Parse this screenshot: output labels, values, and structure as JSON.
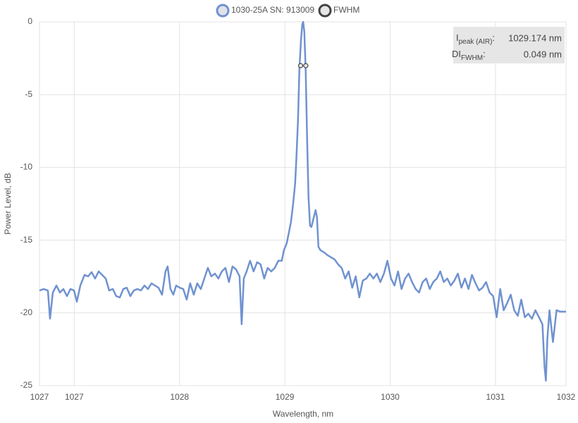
{
  "chart_data": {
    "type": "line",
    "xlabel": "Wavelength, nm",
    "ylabel": "Power Level, dB",
    "xlim": [
      1026.67,
      1031.67
    ],
    "xticks": [
      {
        "value": 1026.67,
        "label": "1027"
      },
      1027,
      1028,
      1029,
      1030,
      1031,
      {
        "value": 1031.67,
        "label": "1032"
      }
    ],
    "ylim": [
      -25,
      0
    ],
    "yticks": [
      0,
      -5,
      -10,
      -15,
      -20,
      -25
    ],
    "grid": true,
    "series": [
      {
        "name": "1030-25A SN: 913009",
        "color": "#7092d0",
        "marker_fill": "#dfe3ea",
        "x": [
          1026.67,
          1026.71,
          1026.75,
          1026.77,
          1026.797,
          1026.831,
          1026.864,
          1026.897,
          1026.931,
          1026.964,
          1026.998,
          1027.025,
          1027.058,
          1027.098,
          1027.132,
          1027.165,
          1027.198,
          1027.232,
          1027.265,
          1027.299,
          1027.332,
          1027.366,
          1027.399,
          1027.433,
          1027.466,
          1027.499,
          1027.533,
          1027.566,
          1027.6,
          1027.633,
          1027.667,
          1027.7,
          1027.734,
          1027.767,
          1027.8,
          1027.834,
          1027.867,
          1027.887,
          1027.914,
          1027.941,
          1027.968,
          1028.001,
          1028.035,
          1028.068,
          1028.101,
          1028.135,
          1028.168,
          1028.202,
          1028.235,
          1028.269,
          1028.302,
          1028.336,
          1028.369,
          1028.402,
          1028.436,
          1028.469,
          1028.503,
          1028.536,
          1028.57,
          1028.59,
          1028.61,
          1028.637,
          1028.67,
          1028.703,
          1028.737,
          1028.77,
          1028.804,
          1028.837,
          1028.871,
          1028.904,
          1028.938,
          1028.971,
          1028.991,
          1029.018,
          1029.038,
          1029.058,
          1029.078,
          1029.098,
          1029.111,
          1029.125,
          1029.138,
          1029.152,
          1029.165,
          1029.174,
          1029.185,
          1029.198,
          1029.212,
          1029.225,
          1029.239,
          1029.252,
          1029.272,
          1029.292,
          1029.305,
          1029.319,
          1029.339,
          1029.372,
          1029.406,
          1029.439,
          1029.473,
          1029.506,
          1029.54,
          1029.573,
          1029.606,
          1029.64,
          1029.673,
          1029.707,
          1029.74,
          1029.774,
          1029.807,
          1029.841,
          1029.874,
          1029.907,
          1029.941,
          1029.974,
          1030.008,
          1030.041,
          1030.075,
          1030.108,
          1030.142,
          1030.175,
          1030.208,
          1030.242,
          1030.275,
          1030.309,
          1030.342,
          1030.376,
          1030.409,
          1030.443,
          1030.476,
          1030.509,
          1030.543,
          1030.576,
          1030.61,
          1030.643,
          1030.677,
          1030.71,
          1030.744,
          1030.777,
          1030.811,
          1030.844,
          1030.877,
          1030.911,
          1030.944,
          1030.978,
          1031.011,
          1031.045,
          1031.078,
          1031.111,
          1031.145,
          1031.178,
          1031.212,
          1031.245,
          1031.279,
          1031.312,
          1031.346,
          1031.379,
          1031.413,
          1031.446,
          1031.466,
          1031.479,
          1031.493,
          1031.513,
          1031.546,
          1031.58,
          1031.613,
          1031.67
        ],
        "values": [
          -18.46,
          -18.36,
          -18.46,
          -20.4,
          -18.6,
          -18.12,
          -18.6,
          -18.36,
          -18.85,
          -18.36,
          -18.46,
          -19.23,
          -18.12,
          -17.39,
          -17.49,
          -17.2,
          -17.64,
          -17.15,
          -17.39,
          -17.64,
          -18.46,
          -18.36,
          -18.85,
          -18.94,
          -18.36,
          -18.27,
          -18.85,
          -18.46,
          -18.36,
          -18.46,
          -18.12,
          -18.36,
          -17.97,
          -18.12,
          -18.27,
          -18.75,
          -17.15,
          -16.81,
          -18.36,
          -18.75,
          -18.12,
          -18.27,
          -18.36,
          -19.09,
          -17.97,
          -18.75,
          -17.97,
          -18.36,
          -17.64,
          -16.91,
          -17.49,
          -17.3,
          -17.64,
          -17.15,
          -16.91,
          -17.88,
          -16.81,
          -17.01,
          -17.49,
          -20.78,
          -17.64,
          -17.15,
          -16.42,
          -17.15,
          -16.52,
          -16.67,
          -17.64,
          -16.91,
          -17.15,
          -16.91,
          -16.42,
          -16.42,
          -15.7,
          -15.21,
          -14.49,
          -13.76,
          -12.55,
          -11.09,
          -9.16,
          -6.73,
          -3.34,
          -1.41,
          -0.19,
          0,
          -0.68,
          -3.34,
          -8.19,
          -12.06,
          -14.0,
          -14.1,
          -13.52,
          -12.94,
          -13.42,
          -15.46,
          -15.7,
          -15.84,
          -16.04,
          -16.18,
          -16.33,
          -16.67,
          -16.91,
          -17.64,
          -17.15,
          -18.27,
          -17.49,
          -18.94,
          -17.78,
          -17.64,
          -17.3,
          -17.64,
          -17.3,
          -17.88,
          -17.3,
          -16.42,
          -17.64,
          -18.12,
          -17.15,
          -18.36,
          -17.64,
          -17.3,
          -17.88,
          -18.36,
          -18.6,
          -17.88,
          -17.64,
          -18.36,
          -17.88,
          -17.64,
          -17.15,
          -17.88,
          -17.64,
          -18.12,
          -17.78,
          -17.3,
          -18.27,
          -17.64,
          -18.36,
          -17.39,
          -17.97,
          -18.46,
          -18.27,
          -17.88,
          -18.6,
          -18.85,
          -20.3,
          -18.36,
          -19.82,
          -19.33,
          -18.75,
          -19.82,
          -20.2,
          -19.09,
          -20.3,
          -20.06,
          -20.4,
          -19.82,
          -20.3,
          -20.78,
          -23.69,
          -24.66,
          -21.75,
          -19.82,
          -22.0,
          -19.82,
          -19.91,
          -19.91
        ]
      },
      {
        "name": "FWHM",
        "color": "#444444",
        "marker_fill": "#e6e6e6",
        "x": [
          1029.15,
          1029.199
        ],
        "values": [
          -3.01,
          -3.01
        ]
      }
    ],
    "annotations": [
      {
        "label": "I",
        "sub": "peak (AIR)",
        "suffix": ":",
        "value": "1029.174 nm"
      },
      {
        "label": "DI",
        "sub": "FWHM",
        "suffix": ":",
        "value": "0.049 nm"
      }
    ]
  }
}
